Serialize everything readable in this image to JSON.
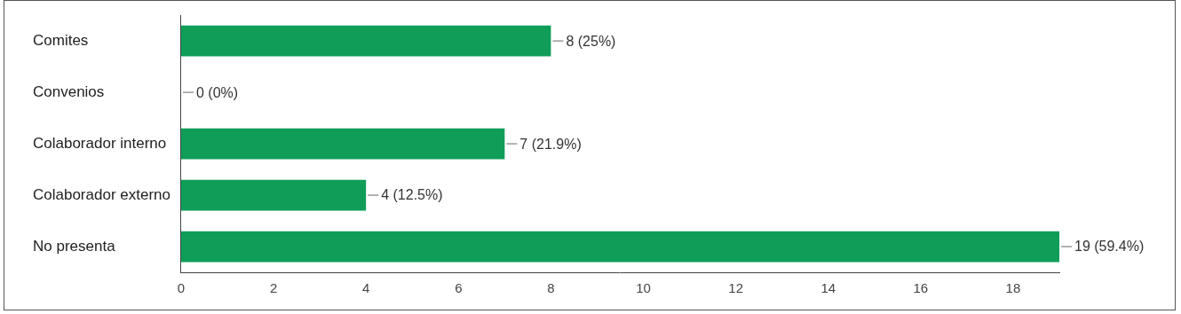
{
  "chart_data": {
    "type": "bar",
    "orientation": "horizontal",
    "categories": [
      "Comites",
      "Convenios",
      "Colaborador interno",
      "Colaborador externo",
      "No presenta"
    ],
    "values": [
      8,
      0,
      7,
      4,
      19
    ],
    "value_labels": [
      "8 (25%)",
      "0 (0%)",
      "7 (21.9%)",
      "4 (12.5%)",
      "19 (59.4%)"
    ],
    "data_labels": true,
    "color": "#0f9d58",
    "xlim": [
      0,
      19
    ],
    "xticks": [
      0,
      2,
      4,
      6,
      8,
      10,
      12,
      14,
      16,
      18
    ],
    "grid": false
  }
}
